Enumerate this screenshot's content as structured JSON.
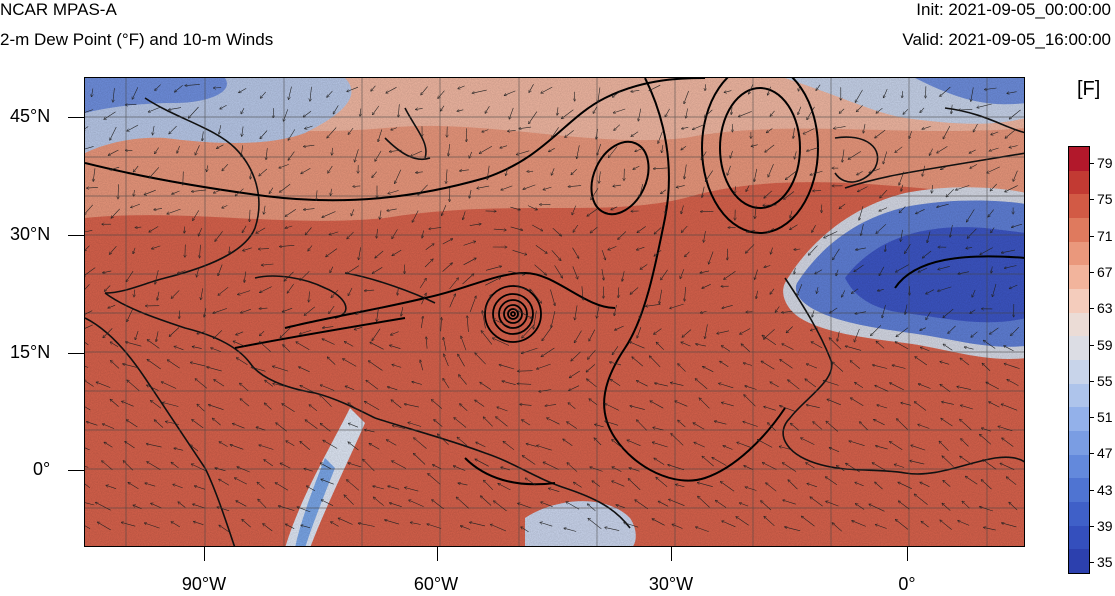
{
  "header": {
    "model": "NCAR MPAS-A",
    "field": "2-m Dew Point (°F) and 10-m Winds",
    "init": "Init: 2021-09-05_00:00:00",
    "valid": "Valid: 2021-09-05_16:00:00"
  },
  "axes": {
    "lat_labels": [
      "45°N",
      "30°N",
      "15°N",
      "0°"
    ],
    "lon_labels": [
      "90°W",
      "60°W",
      "30°W",
      "0°"
    ]
  },
  "colorbar": {
    "units": "[F]",
    "labels": [
      "79",
      "75",
      "71",
      "67",
      "63",
      "59",
      "55",
      "51",
      "47",
      "43",
      "39",
      "35"
    ],
    "colors": [
      "#b2182b",
      "#c23a33",
      "#d25a45",
      "#df7a5e",
      "#ea987c",
      "#f2b49c",
      "#f4ccbc",
      "#ebdcd6",
      "#dcdde4",
      "#c8d4ea",
      "#aec4eb",
      "#93b1ea",
      "#7a9de3",
      "#6389dc",
      "#4f74d2",
      "#3f60c8",
      "#344fbd",
      "#2c40ae"
    ]
  },
  "map": {
    "hurricane_center": "19.5°N 50.5°W"
  }
}
